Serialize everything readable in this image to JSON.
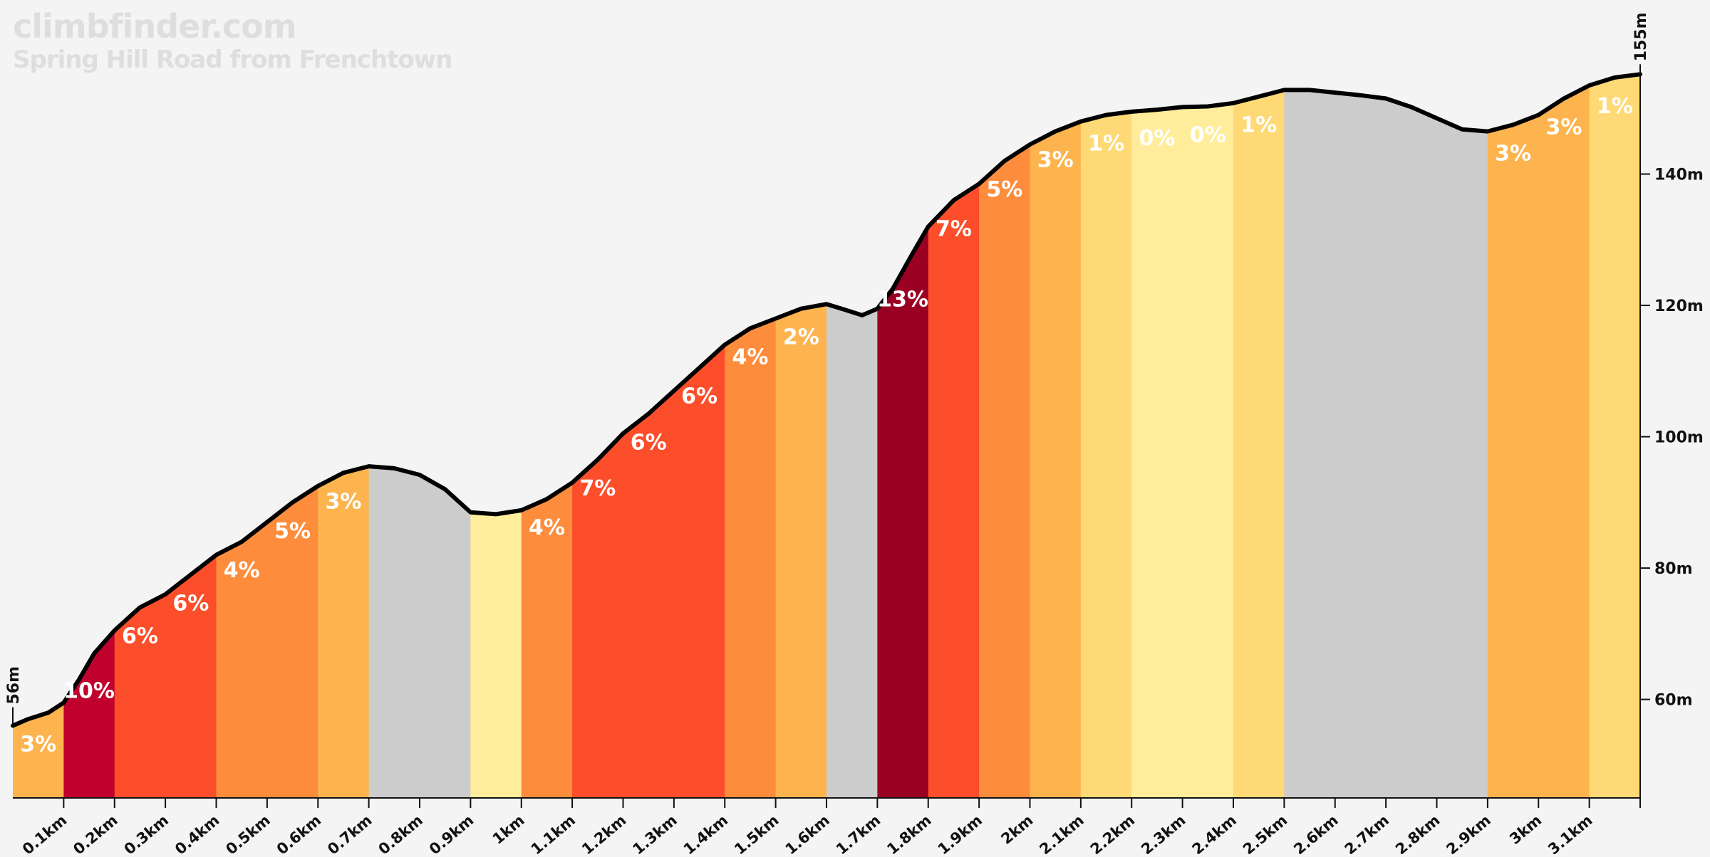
{
  "brand": {
    "site": "climbfinder.com",
    "climb": "Spring Hill Road from Frenchtown"
  },
  "chart_data": {
    "type": "area",
    "title": "Spring Hill Road from Frenchtown",
    "xlabel": "",
    "ylabel": "",
    "x_unit": "km",
    "y_unit": "m",
    "xlim": [
      0,
      3.2
    ],
    "ylim": [
      45,
      160
    ],
    "start_label": "56m",
    "end_label": "155m",
    "x_ticks": [
      {
        "km": 0.1,
        "label": "0.1km"
      },
      {
        "km": 0.2,
        "label": "0.2km"
      },
      {
        "km": 0.3,
        "label": "0.3km"
      },
      {
        "km": 0.4,
        "label": "0.4km"
      },
      {
        "km": 0.5,
        "label": "0.5km"
      },
      {
        "km": 0.6,
        "label": "0.6km"
      },
      {
        "km": 0.7,
        "label": "0.7km"
      },
      {
        "km": 0.8,
        "label": "0.8km"
      },
      {
        "km": 0.9,
        "label": "0.9km"
      },
      {
        "km": 1.0,
        "label": "1km"
      },
      {
        "km": 1.1,
        "label": "1.1km"
      },
      {
        "km": 1.2,
        "label": "1.2km"
      },
      {
        "km": 1.3,
        "label": "1.3km"
      },
      {
        "km": 1.4,
        "label": "1.4km"
      },
      {
        "km": 1.5,
        "label": "1.5km"
      },
      {
        "km": 1.6,
        "label": "1.6km"
      },
      {
        "km": 1.7,
        "label": "1.7km"
      },
      {
        "km": 1.8,
        "label": "1.8km"
      },
      {
        "km": 1.9,
        "label": "1.9km"
      },
      {
        "km": 2.0,
        "label": "2km"
      },
      {
        "km": 2.1,
        "label": "2.1km"
      },
      {
        "km": 2.2,
        "label": "2.2km"
      },
      {
        "km": 2.3,
        "label": "2.3km"
      },
      {
        "km": 2.4,
        "label": "2.4km"
      },
      {
        "km": 2.5,
        "label": "2.5km"
      },
      {
        "km": 2.6,
        "label": "2.6km"
      },
      {
        "km": 2.7,
        "label": "2.7km"
      },
      {
        "km": 2.8,
        "label": "2.8km"
      },
      {
        "km": 2.9,
        "label": "2.9km"
      },
      {
        "km": 3.0,
        "label": "3km"
      },
      {
        "km": 3.1,
        "label": "3.1km"
      }
    ],
    "y_ticks": [
      {
        "m": 60,
        "label": "60m"
      },
      {
        "m": 80,
        "label": "80m"
      },
      {
        "m": 100,
        "label": "100m"
      },
      {
        "m": 120,
        "label": "120m"
      },
      {
        "m": 140,
        "label": "140m"
      }
    ],
    "profile": [
      {
        "km": 0.0,
        "m": 56
      },
      {
        "km": 0.03,
        "m": 57
      },
      {
        "km": 0.07,
        "m": 58
      },
      {
        "km": 0.1,
        "m": 59.5
      },
      {
        "km": 0.13,
        "m": 63
      },
      {
        "km": 0.16,
        "m": 67
      },
      {
        "km": 0.2,
        "m": 70.5
      },
      {
        "km": 0.25,
        "m": 74
      },
      {
        "km": 0.3,
        "m": 76
      },
      {
        "km": 0.35,
        "m": 79
      },
      {
        "km": 0.4,
        "m": 82
      },
      {
        "km": 0.45,
        "m": 84
      },
      {
        "km": 0.5,
        "m": 87
      },
      {
        "km": 0.55,
        "m": 90
      },
      {
        "km": 0.6,
        "m": 92.5
      },
      {
        "km": 0.65,
        "m": 94.5
      },
      {
        "km": 0.7,
        "m": 95.5
      },
      {
        "km": 0.75,
        "m": 95.2
      },
      {
        "km": 0.8,
        "m": 94.2
      },
      {
        "km": 0.85,
        "m": 92
      },
      {
        "km": 0.9,
        "m": 88.5
      },
      {
        "km": 0.95,
        "m": 88.2
      },
      {
        "km": 1.0,
        "m": 88.8
      },
      {
        "km": 1.05,
        "m": 90.5
      },
      {
        "km": 1.1,
        "m": 93
      },
      {
        "km": 1.15,
        "m": 96.5
      },
      {
        "km": 1.2,
        "m": 100.5
      },
      {
        "km": 1.25,
        "m": 103.5
      },
      {
        "km": 1.3,
        "m": 107
      },
      {
        "km": 1.35,
        "m": 110.5
      },
      {
        "km": 1.4,
        "m": 114
      },
      {
        "km": 1.45,
        "m": 116.5
      },
      {
        "km": 1.5,
        "m": 118
      },
      {
        "km": 1.55,
        "m": 119.5
      },
      {
        "km": 1.6,
        "m": 120.2
      },
      {
        "km": 1.63,
        "m": 119.5
      },
      {
        "km": 1.67,
        "m": 118.5
      },
      {
        "km": 1.7,
        "m": 119.5
      },
      {
        "km": 1.73,
        "m": 122.5
      },
      {
        "km": 1.77,
        "m": 128
      },
      {
        "km": 1.8,
        "m": 132
      },
      {
        "km": 1.85,
        "m": 136
      },
      {
        "km": 1.9,
        "m": 138.5
      },
      {
        "km": 1.95,
        "m": 142
      },
      {
        "km": 2.0,
        "m": 144.5
      },
      {
        "km": 2.05,
        "m": 146.5
      },
      {
        "km": 2.1,
        "m": 148
      },
      {
        "km": 2.15,
        "m": 149
      },
      {
        "km": 2.2,
        "m": 149.5
      },
      {
        "km": 2.25,
        "m": 149.8
      },
      {
        "km": 2.3,
        "m": 150.2
      },
      {
        "km": 2.35,
        "m": 150.3
      },
      {
        "km": 2.4,
        "m": 150.8
      },
      {
        "km": 2.45,
        "m": 151.8
      },
      {
        "km": 2.5,
        "m": 152.8
      },
      {
        "km": 2.55,
        "m": 152.8
      },
      {
        "km": 2.6,
        "m": 152.4
      },
      {
        "km": 2.65,
        "m": 152
      },
      {
        "km": 2.7,
        "m": 151.5
      },
      {
        "km": 2.75,
        "m": 150.2
      },
      {
        "km": 2.8,
        "m": 148.5
      },
      {
        "km": 2.85,
        "m": 146.8
      },
      {
        "km": 2.9,
        "m": 146.5
      },
      {
        "km": 2.95,
        "m": 147.5
      },
      {
        "km": 3.0,
        "m": 149
      },
      {
        "km": 3.05,
        "m": 151.5
      },
      {
        "km": 3.1,
        "m": 153.5
      },
      {
        "km": 3.15,
        "m": 154.7
      },
      {
        "km": 3.2,
        "m": 155.2
      }
    ],
    "segments": [
      {
        "from": 0.0,
        "to": 0.1,
        "label": "3%",
        "color": "#fdb44e"
      },
      {
        "from": 0.1,
        "to": 0.2,
        "label": "10%",
        "color": "#c0012d"
      },
      {
        "from": 0.2,
        "to": 0.3,
        "label": "6%",
        "color": "#fc4e2a"
      },
      {
        "from": 0.3,
        "to": 0.4,
        "label": "6%",
        "color": "#fc4e2a"
      },
      {
        "from": 0.4,
        "to": 0.5,
        "label": "4%",
        "color": "#fd8d3c"
      },
      {
        "from": 0.5,
        "to": 0.6,
        "label": "5%",
        "color": "#fd8d3c"
      },
      {
        "from": 0.6,
        "to": 0.7,
        "label": "3%",
        "color": "#fdb44e"
      },
      {
        "from": 0.7,
        "to": 0.8,
        "label": "",
        "color": "#cccccc"
      },
      {
        "from": 0.8,
        "to": 0.9,
        "label": "",
        "color": "#cccccc"
      },
      {
        "from": 0.9,
        "to": 1.0,
        "label": "",
        "color": "#ffed9c"
      },
      {
        "from": 1.0,
        "to": 1.1,
        "label": "4%",
        "color": "#fd8d3c"
      },
      {
        "from": 1.1,
        "to": 1.2,
        "label": "7%",
        "color": "#fc4e2a"
      },
      {
        "from": 1.2,
        "to": 1.3,
        "label": "6%",
        "color": "#fc4e2a"
      },
      {
        "from": 1.3,
        "to": 1.4,
        "label": "6%",
        "color": "#fc4e2a"
      },
      {
        "from": 1.4,
        "to": 1.5,
        "label": "4%",
        "color": "#fd8d3c"
      },
      {
        "from": 1.5,
        "to": 1.6,
        "label": "2%",
        "color": "#fdb44e"
      },
      {
        "from": 1.6,
        "to": 1.7,
        "label": "",
        "color": "#cccccc"
      },
      {
        "from": 1.7,
        "to": 1.8,
        "label": "13%",
        "color": "#990022"
      },
      {
        "from": 1.8,
        "to": 1.9,
        "label": "7%",
        "color": "#fc4e2a"
      },
      {
        "from": 1.9,
        "to": 2.0,
        "label": "5%",
        "color": "#fd8d3c"
      },
      {
        "from": 2.0,
        "to": 2.1,
        "label": "3%",
        "color": "#fdb44e"
      },
      {
        "from": 2.1,
        "to": 2.2,
        "label": "1%",
        "color": "#fed976"
      },
      {
        "from": 2.2,
        "to": 2.3,
        "label": "0%",
        "color": "#ffed9c"
      },
      {
        "from": 2.3,
        "to": 2.4,
        "label": "0%",
        "color": "#ffed9c"
      },
      {
        "from": 2.4,
        "to": 2.5,
        "label": "1%",
        "color": "#fed976"
      },
      {
        "from": 2.5,
        "to": 2.6,
        "label": "",
        "color": "#cccccc"
      },
      {
        "from": 2.6,
        "to": 2.7,
        "label": "",
        "color": "#cccccc"
      },
      {
        "from": 2.7,
        "to": 2.8,
        "label": "",
        "color": "#cccccc"
      },
      {
        "from": 2.8,
        "to": 2.9,
        "label": "",
        "color": "#cccccc"
      },
      {
        "from": 2.9,
        "to": 3.0,
        "label": "3%",
        "color": "#fdb44e"
      },
      {
        "from": 3.0,
        "to": 3.1,
        "label": "3%",
        "color": "#fdb44e"
      },
      {
        "from": 3.1,
        "to": 3.2,
        "label": "1%",
        "color": "#fed976"
      }
    ],
    "grid": false,
    "legend": "none",
    "line_color": "#000000"
  }
}
